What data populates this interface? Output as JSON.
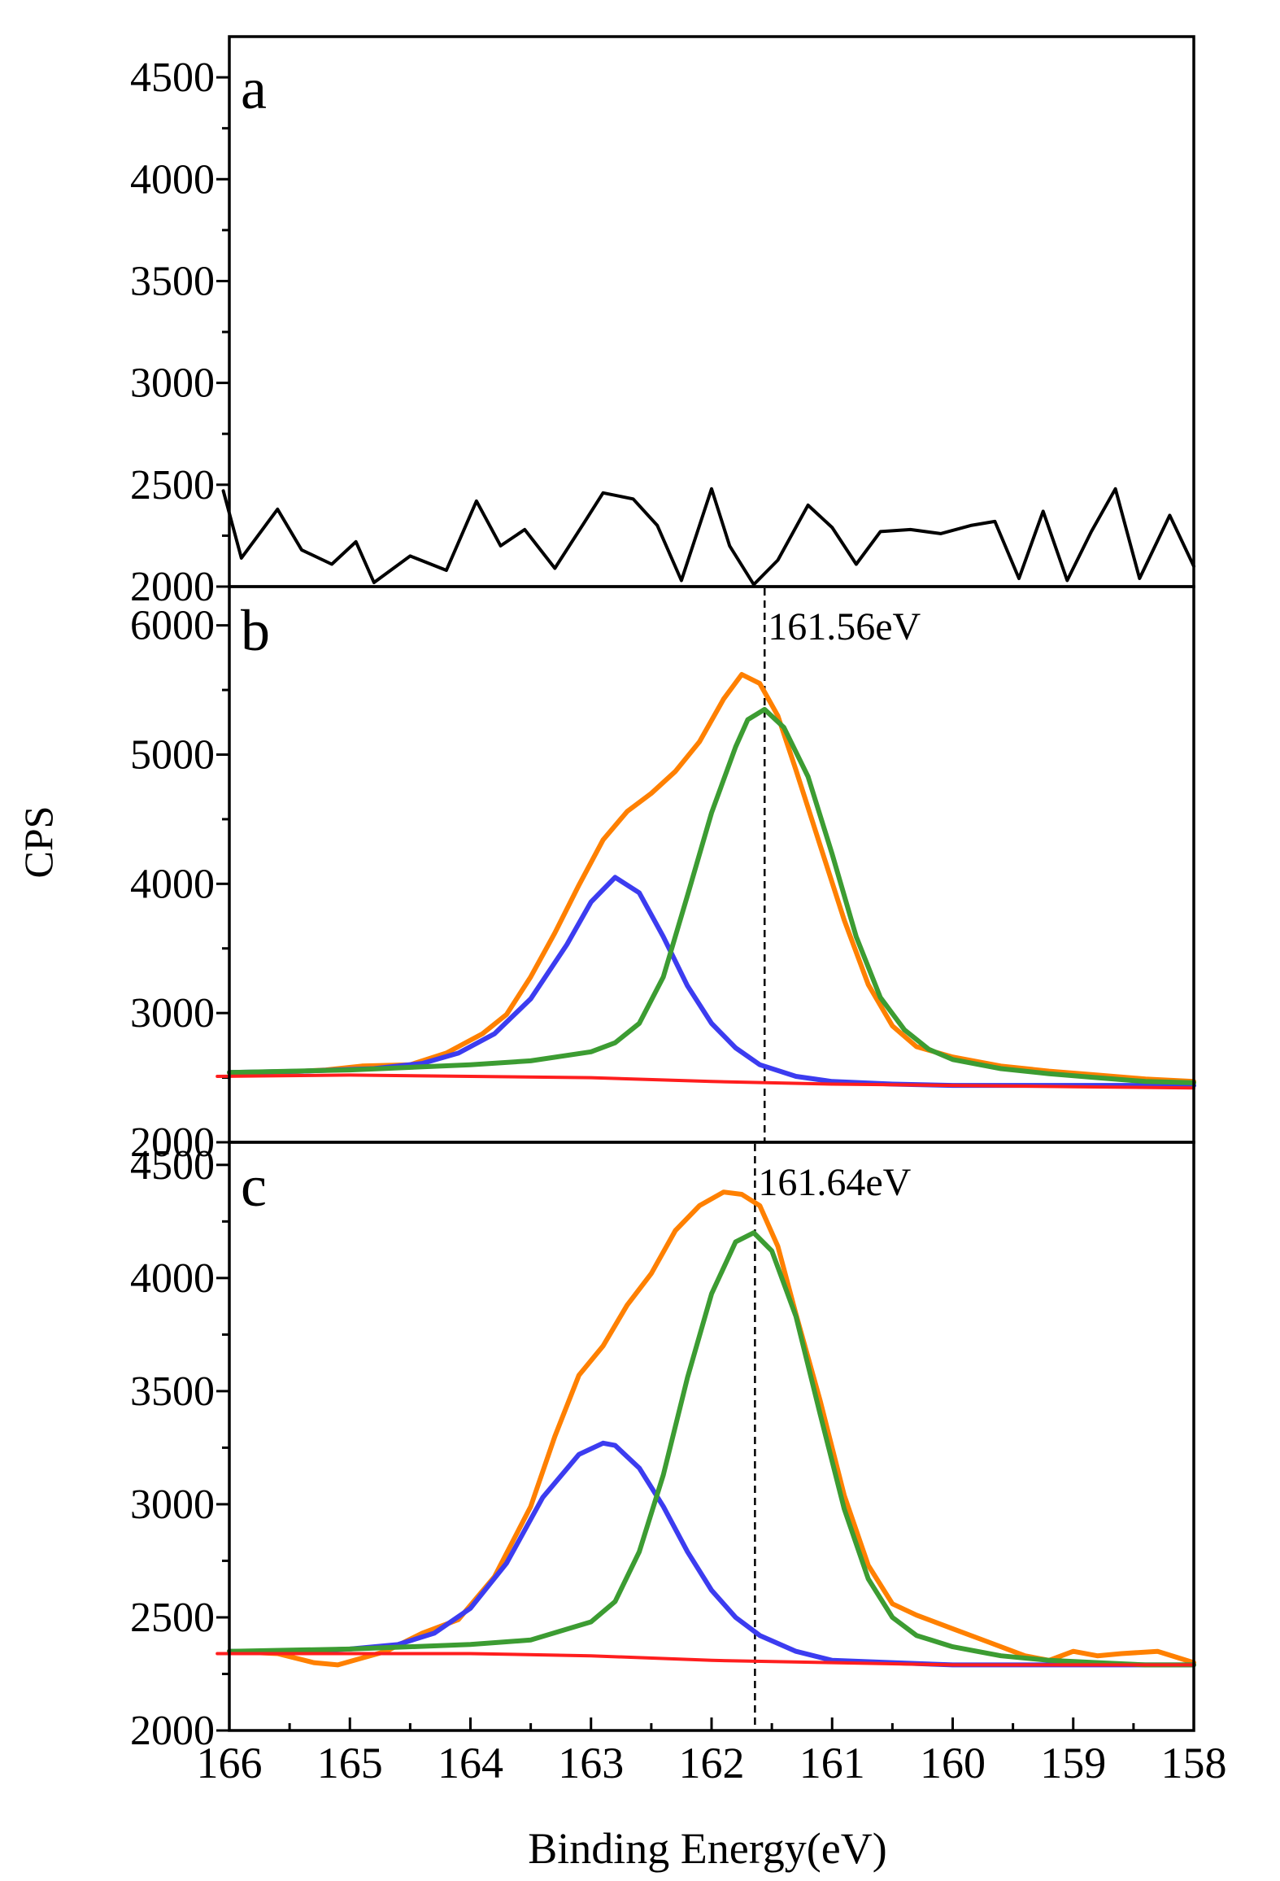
{
  "figure": {
    "ylabel": "CPS",
    "xlabel": "Binding Energy(eV)",
    "x_axis": {
      "range": [
        166,
        158
      ],
      "ticks": [
        166,
        165,
        164,
        163,
        162,
        161,
        160,
        159,
        158
      ]
    },
    "colors": {
      "axis": "#000000",
      "raw_a": "#000000",
      "envelope": "#ff8000",
      "peak_low_be": "#3c9c32",
      "peak_high_be": "#3c3cf0",
      "background": "#ff1e1e",
      "marker": "#000000"
    }
  },
  "chart_data": [
    {
      "type": "line",
      "panel_label": "a",
      "ylim": [
        2000,
        4700
      ],
      "y_ticks": [
        2000,
        2500,
        3000,
        3500,
        4000,
        4500
      ],
      "series": [
        {
          "name": "raw",
          "x": [
            166.05,
            165.9,
            165.6,
            165.4,
            165.15,
            164.95,
            164.8,
            164.5,
            164.2,
            163.95,
            163.75,
            163.55,
            163.3,
            163.05,
            162.9,
            162.65,
            162.45,
            162.25,
            162.0,
            161.85,
            161.65,
            161.45,
            161.2,
            161.0,
            160.8,
            160.6,
            160.35,
            160.1,
            159.85,
            159.65,
            159.45,
            159.25,
            159.05,
            158.85,
            158.65,
            158.45,
            158.2,
            158.0
          ],
          "y": [
            2470,
            2140,
            2380,
            2180,
            2110,
            2220,
            2020,
            2150,
            2080,
            2420,
            2200,
            2280,
            2090,
            2320,
            2460,
            2430,
            2300,
            2030,
            2480,
            2200,
            2010,
            2130,
            2400,
            2290,
            2110,
            2270,
            2280,
            2260,
            2300,
            2320,
            2040,
            2370,
            2030,
            2270,
            2480,
            2040,
            2350,
            2100
          ]
        }
      ]
    },
    {
      "type": "line",
      "panel_label": "b",
      "ylim": [
        2000,
        6300
      ],
      "y_ticks": [
        2000,
        3000,
        4000,
        5000,
        6000
      ],
      "marker": {
        "x": 161.56,
        "label": "161.56eV"
      },
      "series": [
        {
          "name": "envelope",
          "x": [
            166.0,
            165.6,
            165.2,
            164.9,
            164.5,
            164.2,
            163.9,
            163.7,
            163.5,
            163.3,
            163.1,
            162.9,
            162.7,
            162.5,
            162.3,
            162.1,
            161.9,
            161.75,
            161.6,
            161.45,
            161.3,
            161.1,
            160.9,
            160.7,
            160.5,
            160.3,
            160.0,
            159.6,
            159.2,
            158.8,
            158.4,
            158.0
          ],
          "y": [
            2540,
            2540,
            2560,
            2590,
            2600,
            2690,
            2840,
            2990,
            3280,
            3620,
            3990,
            4340,
            4560,
            4700,
            4870,
            5100,
            5430,
            5620,
            5550,
            5300,
            4880,
            4300,
            3720,
            3220,
            2900,
            2740,
            2660,
            2590,
            2550,
            2520,
            2490,
            2470
          ]
        },
        {
          "name": "peak_high_be",
          "x": [
            166.0,
            165.4,
            164.8,
            164.4,
            164.1,
            163.8,
            163.5,
            163.2,
            163.0,
            162.8,
            162.6,
            162.4,
            162.2,
            162.0,
            161.8,
            161.6,
            161.3,
            161.0,
            160.5,
            160.0,
            159.0,
            158.0
          ],
          "y": [
            2540,
            2550,
            2570,
            2610,
            2690,
            2840,
            3110,
            3530,
            3860,
            4050,
            3930,
            3590,
            3210,
            2920,
            2730,
            2600,
            2510,
            2470,
            2450,
            2440,
            2440,
            2440
          ]
        },
        {
          "name": "peak_low_be",
          "x": [
            166.0,
            165.0,
            164.0,
            163.5,
            163.0,
            162.8,
            162.6,
            162.4,
            162.2,
            162.0,
            161.8,
            161.7,
            161.56,
            161.4,
            161.2,
            161.0,
            160.8,
            160.6,
            160.4,
            160.2,
            160.0,
            159.6,
            159.2,
            158.8,
            158.4,
            158.0
          ],
          "y": [
            2540,
            2560,
            2600,
            2630,
            2700,
            2770,
            2920,
            3280,
            3910,
            4550,
            5060,
            5270,
            5350,
            5210,
            4830,
            4230,
            3590,
            3120,
            2870,
            2720,
            2640,
            2570,
            2530,
            2500,
            2470,
            2460
          ]
        },
        {
          "name": "background",
          "x": [
            166.1,
            165.0,
            164.0,
            163.0,
            162.0,
            161.0,
            160.0,
            159.0,
            158.0
          ],
          "y": [
            2510,
            2520,
            2510,
            2500,
            2470,
            2450,
            2440,
            2430,
            2420
          ]
        }
      ]
    },
    {
      "type": "line",
      "panel_label": "c",
      "ylim": [
        2000,
        4600
      ],
      "y_ticks": [
        2000,
        2500,
        3000,
        3500,
        4000,
        4500
      ],
      "marker": {
        "x": 161.64,
        "label": "161.64eV"
      },
      "series": [
        {
          "name": "envelope",
          "x": [
            166.0,
            165.6,
            165.3,
            165.1,
            164.9,
            164.7,
            164.4,
            164.1,
            163.8,
            163.5,
            163.3,
            163.1,
            162.9,
            162.7,
            162.5,
            162.3,
            162.1,
            161.9,
            161.75,
            161.6,
            161.45,
            161.3,
            161.1,
            160.9,
            160.7,
            160.5,
            160.3,
            160.0,
            159.7,
            159.4,
            159.2,
            159.0,
            158.8,
            158.6,
            158.3,
            158.0
          ],
          "y": [
            2350,
            2340,
            2300,
            2290,
            2320,
            2350,
            2430,
            2490,
            2680,
            2990,
            3300,
            3570,
            3700,
            3880,
            4020,
            4210,
            4320,
            4380,
            4370,
            4320,
            4140,
            3840,
            3460,
            3040,
            2730,
            2560,
            2510,
            2450,
            2390,
            2330,
            2310,
            2350,
            2330,
            2340,
            2350,
            2300
          ]
        },
        {
          "name": "peak_high_be",
          "x": [
            166.0,
            165.5,
            165.0,
            164.6,
            164.3,
            164.0,
            163.7,
            163.4,
            163.1,
            162.9,
            162.8,
            162.6,
            162.4,
            162.2,
            162.0,
            161.8,
            161.6,
            161.3,
            161.0,
            160.5,
            160.0,
            159.0,
            158.0
          ],
          "y": [
            2350,
            2350,
            2360,
            2380,
            2430,
            2540,
            2740,
            3030,
            3220,
            3270,
            3260,
            3160,
            2990,
            2790,
            2620,
            2500,
            2420,
            2350,
            2310,
            2300,
            2290,
            2290,
            2290
          ]
        },
        {
          "name": "peak_low_be",
          "x": [
            166.0,
            165.0,
            164.0,
            163.5,
            163.0,
            162.8,
            162.6,
            162.4,
            162.2,
            162.0,
            161.8,
            161.65,
            161.5,
            161.3,
            161.1,
            160.9,
            160.7,
            160.5,
            160.3,
            160.0,
            159.6,
            159.2,
            158.8,
            158.4,
            158.0
          ],
          "y": [
            2350,
            2360,
            2380,
            2400,
            2480,
            2570,
            2790,
            3130,
            3560,
            3930,
            4160,
            4200,
            4120,
            3830,
            3400,
            2980,
            2670,
            2500,
            2420,
            2370,
            2330,
            2310,
            2300,
            2290,
            2290
          ]
        },
        {
          "name": "background",
          "x": [
            166.1,
            165.0,
            164.0,
            163.0,
            162.0,
            161.0,
            160.0,
            159.0,
            158.0
          ],
          "y": [
            2340,
            2340,
            2340,
            2330,
            2310,
            2300,
            2290,
            2290,
            2290
          ]
        }
      ]
    }
  ]
}
